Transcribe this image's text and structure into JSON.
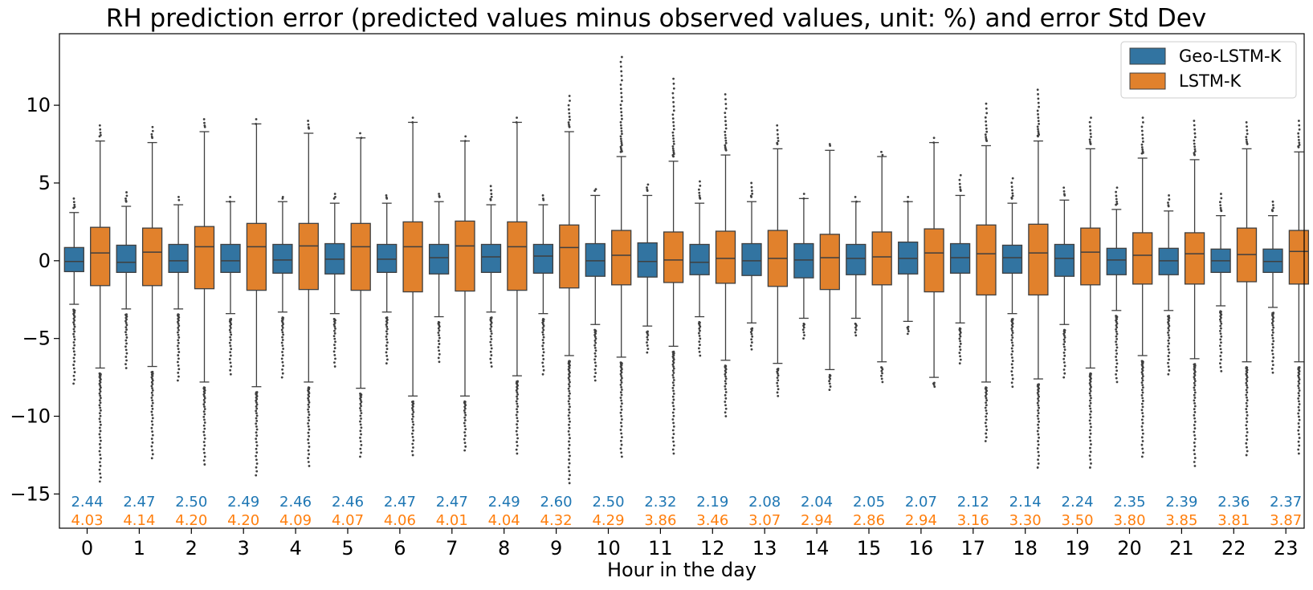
{
  "chart_data": {
    "type": "box",
    "title": "RH prediction error (predicted values minus observed values, unit: %) and error Std Dev",
    "xlabel": "Hour in the day",
    "ylabel": "",
    "ylim": [
      -17.2,
      14.6
    ],
    "yticks": [
      10,
      5,
      0,
      -5,
      -10,
      -15
    ],
    "ytick_labels": [
      "10",
      "5",
      "0",
      "−5",
      "−10",
      "−15"
    ],
    "categories": [
      "0",
      "1",
      "2",
      "3",
      "4",
      "5",
      "6",
      "7",
      "8",
      "9",
      "10",
      "11",
      "12",
      "13",
      "14",
      "15",
      "16",
      "17",
      "18",
      "19",
      "20",
      "21",
      "22",
      "23"
    ],
    "legend_position": "top-right",
    "series": [
      {
        "name": "Geo-LSTM-K",
        "color": "#3274a1",
        "label_color": "#1f77b4",
        "q1": [
          -0.7,
          -0.75,
          -0.75,
          -0.75,
          -0.8,
          -0.85,
          -0.75,
          -0.85,
          -0.75,
          -0.8,
          -1.0,
          -1.05,
          -0.9,
          -0.95,
          -1.1,
          -0.9,
          -0.85,
          -0.8,
          -0.8,
          -1.0,
          -0.9,
          -0.9,
          -0.75,
          -0.75
        ],
        "median": [
          -0.05,
          -0.1,
          0.0,
          0.0,
          0.05,
          0.1,
          0.1,
          0.2,
          0.25,
          0.3,
          0.0,
          -0.05,
          -0.1,
          0.0,
          0.05,
          0.15,
          0.15,
          0.2,
          0.2,
          0.15,
          0.05,
          0.0,
          0.0,
          -0.05
        ],
        "q3": [
          0.85,
          1.0,
          1.05,
          1.05,
          1.05,
          1.1,
          1.05,
          1.05,
          1.05,
          1.05,
          1.1,
          1.15,
          1.05,
          1.1,
          1.1,
          1.05,
          1.2,
          1.1,
          1.0,
          1.05,
          0.8,
          0.8,
          0.75,
          0.75
        ],
        "whisker_low": [
          -2.8,
          -3.1,
          -3.1,
          -3.4,
          -3.3,
          -3.4,
          -3.3,
          -3.6,
          -3.3,
          -3.4,
          -4.1,
          -4.2,
          -3.6,
          -4.0,
          -3.7,
          -3.7,
          -3.9,
          -4.0,
          -3.4,
          -4.1,
          -3.2,
          -3.2,
          -2.9,
          -3.0
        ],
        "whisker_high": [
          3.1,
          3.5,
          3.6,
          3.8,
          3.8,
          3.7,
          3.7,
          3.8,
          3.6,
          3.6,
          4.2,
          4.2,
          3.7,
          3.8,
          4.0,
          3.8,
          3.8,
          4.2,
          3.7,
          3.9,
          3.3,
          3.2,
          2.9,
          2.9
        ],
        "flier_low": [
          -7.9,
          -6.9,
          -7.7,
          -7.3,
          -7.5,
          -6.8,
          -6.6,
          -6.5,
          -6.8,
          -7.3,
          -7.7,
          -5.9,
          -6.1,
          -5.7,
          -5.0,
          -4.8,
          -4.7,
          -6.6,
          -8.1,
          -7.5,
          -7.8,
          -7.3,
          -7.1,
          -7.2
        ],
        "flier_high": [
          4.0,
          4.4,
          4.1,
          3.8,
          4.0,
          4.3,
          4.2,
          4.3,
          4.8,
          4.2,
          4.6,
          4.9,
          5.1,
          5.0,
          4.0,
          3.8,
          3.8,
          5.5,
          5.3,
          4.7,
          4.7,
          4.2,
          4.3,
          3.8
        ],
        "std_dev": [
          "2.44",
          "2.47",
          "2.50",
          "2.49",
          "2.46",
          "2.46",
          "2.47",
          "2.47",
          "2.49",
          "2.60",
          "2.50",
          "2.32",
          "2.19",
          "2.08",
          "2.04",
          "2.05",
          "2.07",
          "2.12",
          "2.14",
          "2.24",
          "2.35",
          "2.39",
          "2.36",
          "2.37"
        ]
      },
      {
        "name": "LSTM-K",
        "color": "#e1812c",
        "label_color": "#ff7f0e",
        "q1": [
          -1.6,
          -1.6,
          -1.8,
          -1.9,
          -1.85,
          -1.9,
          -2.0,
          -1.95,
          -1.9,
          -1.75,
          -1.55,
          -1.4,
          -1.45,
          -1.65,
          -1.85,
          -1.55,
          -2.0,
          -2.2,
          -2.2,
          -1.55,
          -1.5,
          -1.5,
          -1.35,
          -1.5
        ],
        "median": [
          0.5,
          0.55,
          0.9,
          0.9,
          0.95,
          0.9,
          0.9,
          0.95,
          0.9,
          0.85,
          0.35,
          0.05,
          0.15,
          0.15,
          0.2,
          0.25,
          0.5,
          0.45,
          0.5,
          0.55,
          0.35,
          0.45,
          0.4,
          0.6
        ],
        "q3": [
          2.15,
          2.1,
          2.2,
          2.4,
          2.4,
          2.4,
          2.5,
          2.55,
          2.5,
          2.3,
          1.95,
          1.85,
          1.9,
          1.95,
          1.7,
          1.85,
          2.05,
          2.3,
          2.35,
          2.1,
          1.8,
          1.8,
          2.1,
          1.95
        ],
        "whisker_low": [
          -6.9,
          -6.8,
          -7.8,
          -8.1,
          -7.8,
          -8.2,
          -8.7,
          -8.7,
          -7.4,
          -6.1,
          -6.2,
          -5.5,
          -6.4,
          -6.6,
          -7.0,
          -6.5,
          -7.5,
          -7.8,
          -7.6,
          -6.9,
          -6.1,
          -6.3,
          -6.5,
          -6.5
        ],
        "whisker_high": [
          7.7,
          7.6,
          8.3,
          8.8,
          8.2,
          7.9,
          8.9,
          7.7,
          8.9,
          8.3,
          6.7,
          6.4,
          6.8,
          7.2,
          7.1,
          6.7,
          7.6,
          7.4,
          7.7,
          7.2,
          6.6,
          6.5,
          7.2,
          7.0
        ],
        "flier_low": [
          -14.2,
          -12.7,
          -13.1,
          -13.8,
          -13.2,
          -12.6,
          -12.5,
          -12.2,
          -12.4,
          -14.3,
          -12.6,
          -12.4,
          -10.0,
          -8.7,
          -8.3,
          -7.8,
          -8.1,
          -11.6,
          -13.3,
          -13.3,
          -12.6,
          -13.2,
          -12.5,
          -12.4
        ],
        "flier_high": [
          8.7,
          8.6,
          9.1,
          8.8,
          9.0,
          7.9,
          8.9,
          7.7,
          8.9,
          10.6,
          13.1,
          11.7,
          10.7,
          8.7,
          7.5,
          6.8,
          7.6,
          10.1,
          11.0,
          9.2,
          9.2,
          9.0,
          8.9,
          9.0
        ],
        "std_dev": [
          "4.03",
          "4.14",
          "4.20",
          "4.20",
          "4.09",
          "4.07",
          "4.06",
          "4.01",
          "4.04",
          "4.32",
          "4.29",
          "3.86",
          "3.46",
          "3.07",
          "2.94",
          "2.86",
          "2.94",
          "3.16",
          "3.30",
          "3.50",
          "3.80",
          "3.85",
          "3.81",
          "3.87"
        ]
      }
    ]
  }
}
